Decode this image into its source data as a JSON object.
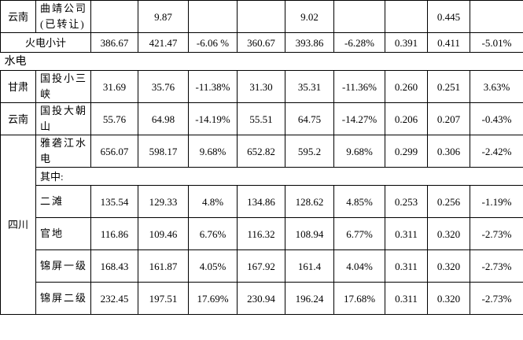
{
  "rows": [
    {
      "prov": "云南",
      "name": "曲靖公司(已转让)",
      "c": [
        "",
        "9.87",
        "",
        "",
        "9.02",
        "",
        "",
        "0.445",
        ""
      ]
    },
    {
      "total": "火电小计",
      "c": [
        "386.67",
        "421.47",
        "-6.06 %",
        "360.67",
        "393.86",
        "-6.28%",
        "0.391",
        "0.411",
        "-5.01%"
      ]
    },
    {
      "section": "水电"
    },
    {
      "prov": "甘肃",
      "name": "国投小三峡",
      "c": [
        "31.69",
        "35.76",
        "-11.38%",
        "31.30",
        "35.31",
        "-11.36%",
        "0.260",
        "0.251",
        "3.63%"
      ]
    },
    {
      "prov": "云南",
      "name": "国投大朝山",
      "c": [
        "55.76",
        "64.98",
        "-14.19%",
        "55.51",
        "64.75",
        "-14.27%",
        "0.206",
        "0.207",
        "-0.43%"
      ]
    },
    {
      "prov": "四川",
      "name": "雅砻江水电",
      "c": [
        "656.07",
        "598.17",
        "9.68%",
        "652.82",
        "595.2",
        "9.68%",
        "0.299",
        "0.306",
        "-2.42%"
      ]
    },
    {
      "sub": "其中:"
    },
    {
      "name": "二滩",
      "c": [
        "135.54",
        "129.33",
        "4.8%",
        "134.86",
        "128.62",
        "4.85%",
        "0.253",
        "0.256",
        "-1.19%"
      ]
    },
    {
      "name": "官地",
      "c": [
        "116.86",
        "109.46",
        "6.76%",
        "116.32",
        "108.94",
        "6.77%",
        "0.311",
        "0.320",
        "-2.73%"
      ]
    },
    {
      "name": "锦屏一级",
      "c": [
        "168.43",
        "161.87",
        "4.05%",
        "167.92",
        "161.4",
        "4.04%",
        "0.311",
        "0.320",
        "-2.73%"
      ]
    },
    {
      "name": "锦屏二级",
      "c": [
        "232.45",
        "197.51",
        "17.69%",
        "230.94",
        "196.24",
        "17.68%",
        "0.311",
        "0.320",
        "-2.73%"
      ]
    }
  ]
}
